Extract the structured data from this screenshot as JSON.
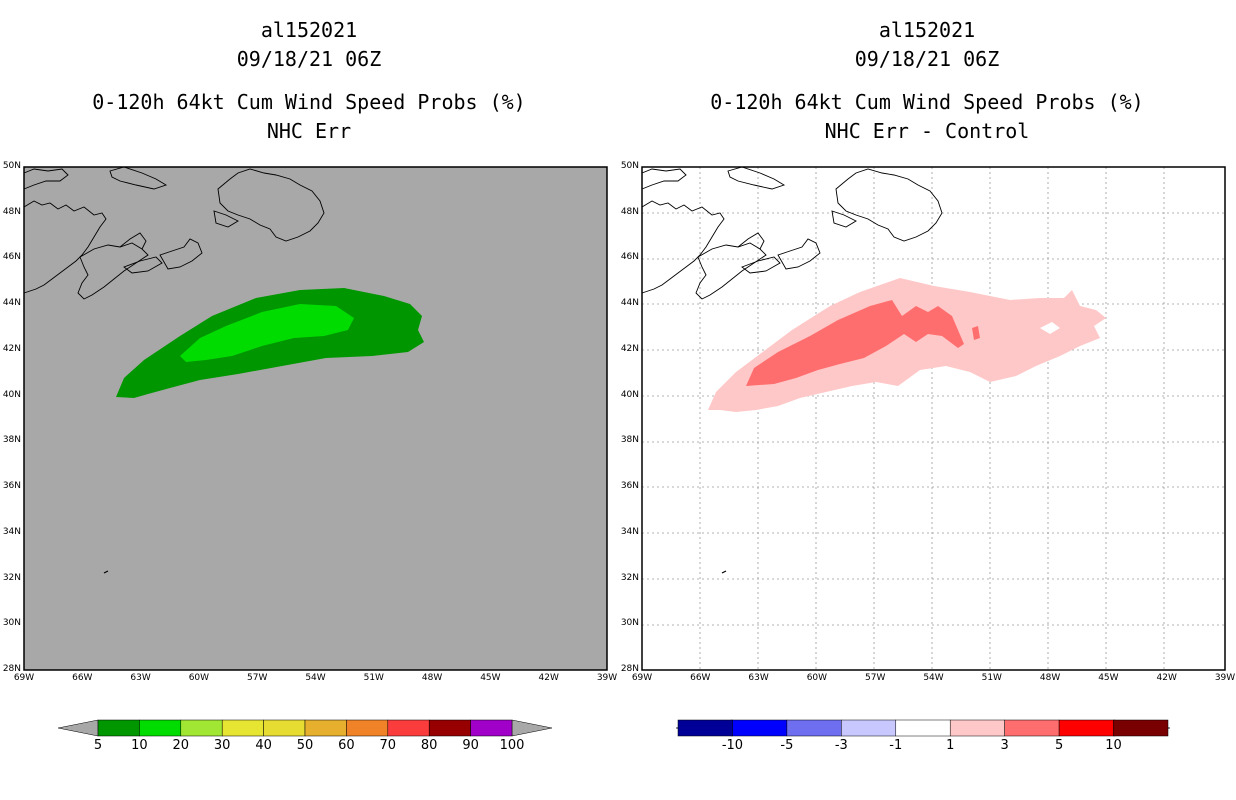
{
  "left_panel": {
    "storm_id": "al152021",
    "datetime": "09/18/21 06Z",
    "product": "0-120h 64kt Cum Wind Speed Probs (%)",
    "subtitle": "NHC Err",
    "background_color": "#a8a8a8",
    "colorbar": {
      "colors": [
        "#009600",
        "#00dc00",
        "#a0e632",
        "#e6e632",
        "#e6dc32",
        "#e6af2d",
        "#f08228",
        "#fa3c3c",
        "#960000",
        "#a000c8"
      ],
      "labels": [
        "5",
        "10",
        "20",
        "30",
        "40",
        "50",
        "60",
        "70",
        "80",
        "90",
        "100"
      ]
    }
  },
  "right_panel": {
    "storm_id": "al152021",
    "datetime": "09/18/21 06Z",
    "product": "0-120h 64kt Cum Wind Speed Probs (%)",
    "subtitle": "NHC Err - Control",
    "colorbar": {
      "colors": [
        "#000096",
        "#0000ff",
        "#6e6ef0",
        "#c8c8ff",
        "#ffffff",
        "#ffc8c8",
        "#ff6e6e",
        "#ff0000",
        "#780000"
      ],
      "labels": [
        "-10",
        "-5",
        "-3",
        "-1",
        "1",
        "3",
        "5",
        "10"
      ]
    }
  },
  "map": {
    "lat_labels": [
      "50N",
      "48N",
      "46N",
      "44N",
      "42N",
      "40N",
      "38N",
      "36N",
      "34N",
      "32N",
      "30N",
      "28N"
    ],
    "lon_labels": [
      "69W",
      "66W",
      "63W",
      "60W",
      "57W",
      "54W",
      "51W",
      "48W",
      "45W",
      "42W",
      "39W"
    ]
  }
}
